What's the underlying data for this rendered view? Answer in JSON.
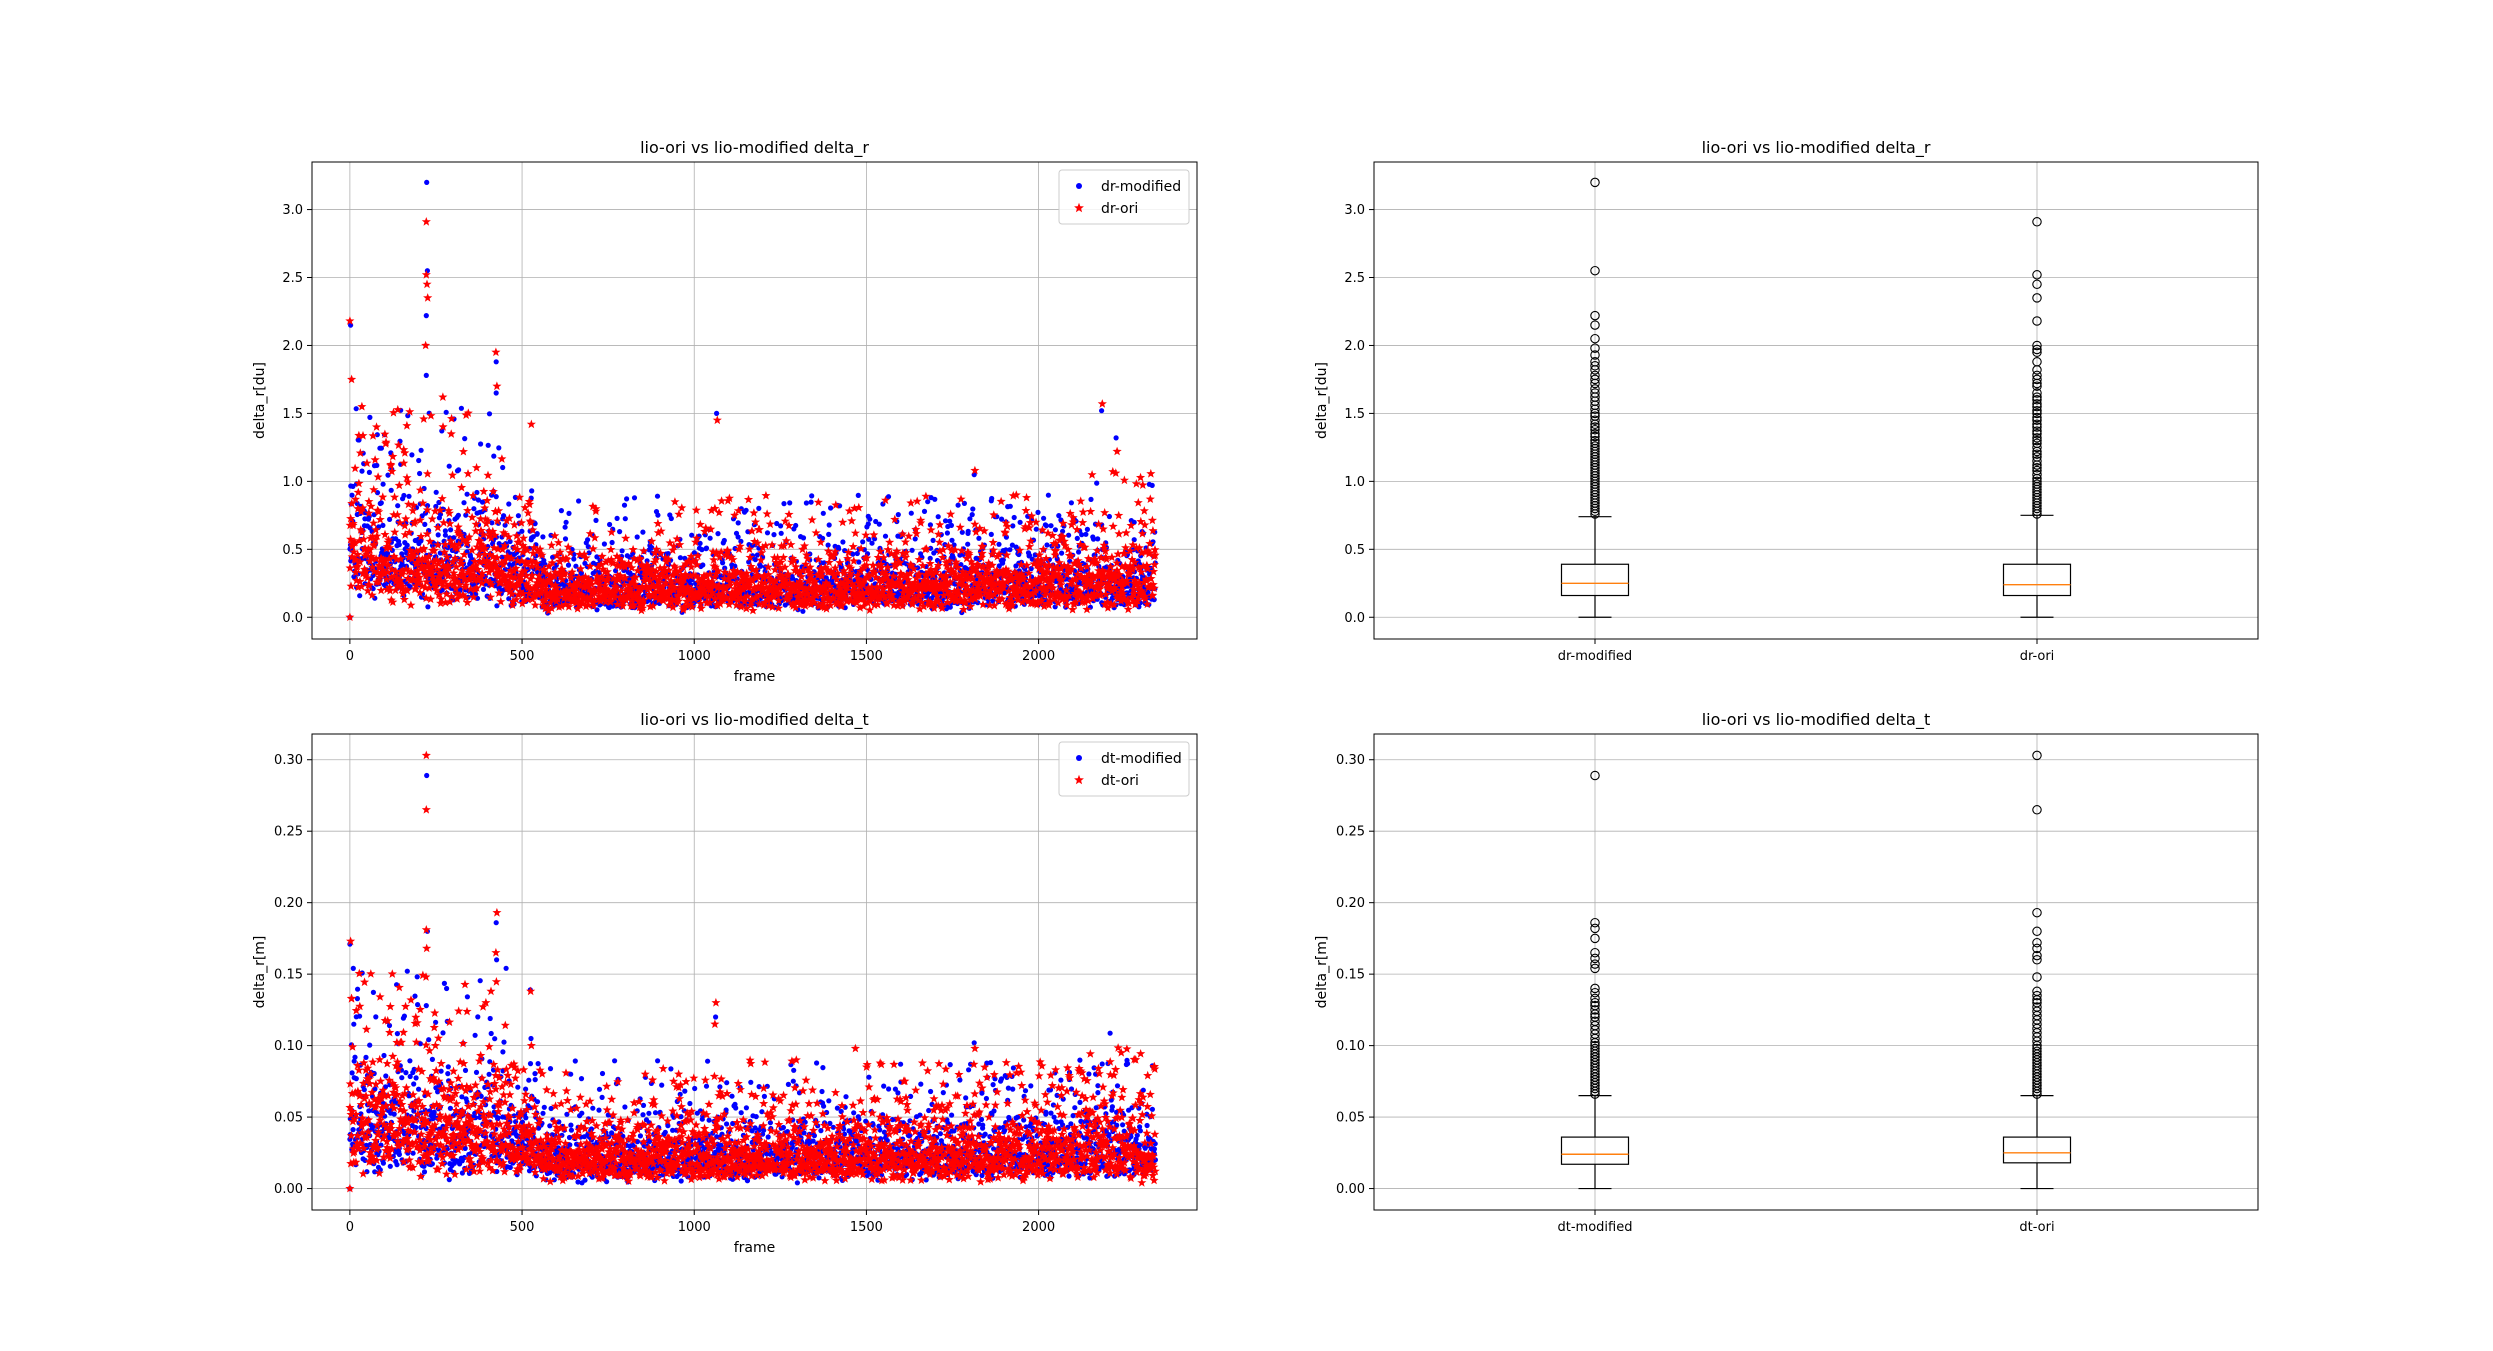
{
  "chart_data": [
    {
      "id": "scatter-delta-r",
      "type": "scatter",
      "title": "lio-ori vs lio-modified delta_r",
      "xlabel": "frame",
      "ylabel": "delta_r[du]",
      "xlim": [
        -110,
        2460
      ],
      "ylim": [
        -0.16,
        3.35
      ],
      "xticks": [
        0,
        500,
        1000,
        1500,
        2000
      ],
      "yticks": [
        0.0,
        0.5,
        1.0,
        1.5,
        2.0,
        2.5,
        3.0
      ],
      "yticklabels": [
        "0.0",
        "0.5",
        "1.0",
        "1.5",
        "2.0",
        "2.5",
        "3.0"
      ],
      "grid": true,
      "legend_position": "upper right",
      "n_frames": 2340,
      "series": [
        {
          "name": "dr-modified",
          "marker": "point",
          "color": "#0000ff"
        },
        {
          "name": "dr-ori",
          "marker": "star",
          "color": "#ff0000"
        }
      ],
      "median": 0.25,
      "q1": 0.16,
      "q3": 0.39,
      "max_outlier": 3.2,
      "outliers": [
        {
          "x": 223,
          "y": 3.2,
          "series": 0
        },
        {
          "x": 222,
          "y": 2.91,
          "series": 1
        },
        {
          "x": 225,
          "y": 2.55,
          "series": 0
        },
        {
          "x": 222,
          "y": 2.52,
          "series": 1
        },
        {
          "x": 224,
          "y": 2.45,
          "series": 1
        },
        {
          "x": 226,
          "y": 2.35,
          "series": 1
        },
        {
          "x": 222,
          "y": 2.22,
          "series": 0
        },
        {
          "x": 0,
          "y": 2.18,
          "series": 1
        },
        {
          "x": 2,
          "y": 2.15,
          "series": 0
        },
        {
          "x": 220,
          "y": 2.0,
          "series": 1
        },
        {
          "x": 424,
          "y": 1.95,
          "series": 1
        },
        {
          "x": 425,
          "y": 1.88,
          "series": 0
        },
        {
          "x": 222,
          "y": 1.78,
          "series": 0
        },
        {
          "x": 5,
          "y": 1.75,
          "series": 1
        },
        {
          "x": 427,
          "y": 1.7,
          "series": 1
        },
        {
          "x": 425,
          "y": 1.65,
          "series": 0
        },
        {
          "x": 270,
          "y": 1.62,
          "series": 1
        },
        {
          "x": 2185,
          "y": 1.57,
          "series": 1
        },
        {
          "x": 2183,
          "y": 1.52,
          "series": 0
        },
        {
          "x": 1065,
          "y": 1.5,
          "series": 0
        },
        {
          "x": 1067,
          "y": 1.45,
          "series": 1
        },
        {
          "x": 527,
          "y": 1.42,
          "series": 1
        },
        {
          "x": 2225,
          "y": 1.32,
          "series": 0
        },
        {
          "x": 2228,
          "y": 1.22,
          "series": 1
        },
        {
          "x": 1815,
          "y": 1.08,
          "series": 1
        },
        {
          "x": 1813,
          "y": 1.05,
          "series": 0
        },
        {
          "x": 2330,
          "y": 0.97,
          "series": 0
        },
        {
          "x": 528,
          "y": 0.93,
          "series": 0
        },
        {
          "x": 1965,
          "y": 0.88,
          "series": 1
        },
        {
          "x": 1678,
          "y": 0.85,
          "series": 0
        },
        {
          "x": 1060,
          "y": 0.8,
          "series": 1
        },
        {
          "x": 1422,
          "y": 0.82,
          "series": 0
        }
      ]
    },
    {
      "id": "box-delta-r",
      "type": "box",
      "title": "lio-ori vs lio-modified delta_r",
      "ylabel": "delta_r[du]",
      "ylim": [
        -0.16,
        3.35
      ],
      "yticks": [
        0.0,
        0.5,
        1.0,
        1.5,
        2.0,
        2.5,
        3.0
      ],
      "yticklabels": [
        "0.0",
        "0.5",
        "1.0",
        "1.5",
        "2.0",
        "2.5",
        "3.0"
      ],
      "grid": true,
      "categories": [
        "dr-modified",
        "dr-ori"
      ],
      "boxes": [
        {
          "min": 0.0,
          "q1": 0.16,
          "median": 0.25,
          "q3": 0.39,
          "max": 0.74,
          "outliers": [
            3.2,
            2.55,
            2.22,
            2.15,
            2.05,
            1.98,
            1.93,
            1.88,
            1.85,
            1.82,
            1.78,
            1.75,
            1.72,
            1.68,
            1.65,
            1.62,
            1.59,
            1.56,
            1.53,
            1.5,
            1.48,
            1.45,
            1.42,
            1.4,
            1.38,
            1.35,
            1.33,
            1.3,
            1.28,
            1.26,
            1.24,
            1.22,
            1.2,
            1.18,
            1.16,
            1.14,
            1.12,
            1.1,
            1.08,
            1.06,
            1.04,
            1.02,
            1.0,
            0.98,
            0.96,
            0.94,
            0.92,
            0.9,
            0.88,
            0.86,
            0.84,
            0.82,
            0.8,
            0.78,
            0.76
          ]
        },
        {
          "min": 0.0,
          "q1": 0.16,
          "median": 0.24,
          "q3": 0.39,
          "max": 0.75,
          "outliers": [
            2.91,
            2.52,
            2.45,
            2.35,
            2.18,
            2.0,
            1.97,
            1.95,
            1.88,
            1.82,
            1.78,
            1.75,
            1.72,
            1.7,
            1.65,
            1.62,
            1.6,
            1.57,
            1.55,
            1.52,
            1.5,
            1.47,
            1.45,
            1.42,
            1.4,
            1.37,
            1.35,
            1.32,
            1.3,
            1.28,
            1.25,
            1.22,
            1.2,
            1.18,
            1.15,
            1.12,
            1.1,
            1.08,
            1.05,
            1.02,
            1.0,
            0.98,
            0.96,
            0.94,
            0.92,
            0.9,
            0.88,
            0.86,
            0.84,
            0.82,
            0.8,
            0.78,
            0.76
          ]
        }
      ]
    },
    {
      "id": "scatter-delta-t",
      "type": "scatter",
      "title": "lio-ori vs lio-modified delta_t",
      "xlabel": "frame",
      "ylabel": "delta_r[m]",
      "xlim": [
        -110,
        2460
      ],
      "ylim": [
        -0.015,
        0.318
      ],
      "xticks": [
        0,
        500,
        1000,
        1500,
        2000
      ],
      "yticks": [
        0.0,
        0.05,
        0.1,
        0.15,
        0.2,
        0.25,
        0.3
      ],
      "yticklabels": [
        "0.00",
        "0.05",
        "0.10",
        "0.15",
        "0.20",
        "0.25",
        "0.30"
      ],
      "grid": true,
      "legend_position": "upper right",
      "n_frames": 2340,
      "series": [
        {
          "name": "dt-modified",
          "marker": "point",
          "color": "#0000ff"
        },
        {
          "name": "dt-ori",
          "marker": "star",
          "color": "#ff0000"
        }
      ],
      "median": 0.025,
      "q1": 0.017,
      "q3": 0.036,
      "max_outlier": 0.303,
      "outliers": [
        {
          "x": 222,
          "y": 0.303,
          "series": 1
        },
        {
          "x": 223,
          "y": 0.289,
          "series": 0
        },
        {
          "x": 222,
          "y": 0.265,
          "series": 1
        },
        {
          "x": 427,
          "y": 0.193,
          "series": 1
        },
        {
          "x": 425,
          "y": 0.186,
          "series": 0
        },
        {
          "x": 222,
          "y": 0.181,
          "series": 1
        },
        {
          "x": 225,
          "y": 0.18,
          "series": 0
        },
        {
          "x": 2,
          "y": 0.173,
          "series": 1
        },
        {
          "x": 0,
          "y": 0.171,
          "series": 0
        },
        {
          "x": 223,
          "y": 0.168,
          "series": 1
        },
        {
          "x": 424,
          "y": 0.165,
          "series": 1
        },
        {
          "x": 426,
          "y": 0.16,
          "series": 0
        },
        {
          "x": 221,
          "y": 0.148,
          "series": 1
        },
        {
          "x": 10,
          "y": 0.154,
          "series": 0
        },
        {
          "x": 525,
          "y": 0.138,
          "series": 1
        },
        {
          "x": 524,
          "y": 0.139,
          "series": 0
        },
        {
          "x": 5,
          "y": 0.133,
          "series": 1
        },
        {
          "x": 1063,
          "y": 0.13,
          "series": 1
        },
        {
          "x": 1062,
          "y": 0.12,
          "series": 0
        },
        {
          "x": 222,
          "y": 0.128,
          "series": 0
        },
        {
          "x": 395,
          "y": 0.13,
          "series": 1
        },
        {
          "x": 1060,
          "y": 0.115,
          "series": 1
        },
        {
          "x": 526,
          "y": 0.105,
          "series": 0
        },
        {
          "x": 527,
          "y": 0.1,
          "series": 1
        },
        {
          "x": 1468,
          "y": 0.098,
          "series": 1
        },
        {
          "x": 1813,
          "y": 0.102,
          "series": 0
        },
        {
          "x": 1815,
          "y": 0.098,
          "series": 1
        },
        {
          "x": 2240,
          "y": 0.095,
          "series": 1
        },
        {
          "x": 2335,
          "y": 0.085,
          "series": 1
        },
        {
          "x": 940,
          "y": 0.075,
          "series": 1
        }
      ]
    },
    {
      "id": "box-delta-t",
      "type": "box",
      "title": "lio-ori vs lio-modified delta_t",
      "ylabel": "delta_r[m]",
      "ylim": [
        -0.015,
        0.318
      ],
      "yticks": [
        0.0,
        0.05,
        0.1,
        0.15,
        0.2,
        0.25,
        0.3
      ],
      "yticklabels": [
        "0.00",
        "0.05",
        "0.10",
        "0.15",
        "0.20",
        "0.25",
        "0.30"
      ],
      "grid": true,
      "categories": [
        "dt-modified",
        "dt-ori"
      ],
      "boxes": [
        {
          "min": 0.0,
          "q1": 0.017,
          "median": 0.024,
          "q3": 0.036,
          "max": 0.065,
          "outliers": [
            0.289,
            0.186,
            0.182,
            0.175,
            0.165,
            0.161,
            0.157,
            0.154,
            0.14,
            0.137,
            0.133,
            0.13,
            0.128,
            0.125,
            0.122,
            0.12,
            0.117,
            0.114,
            0.111,
            0.108,
            0.105,
            0.102,
            0.1,
            0.098,
            0.096,
            0.094,
            0.092,
            0.09,
            0.088,
            0.086,
            0.084,
            0.082,
            0.08,
            0.078,
            0.076,
            0.074,
            0.072,
            0.07,
            0.068,
            0.066
          ]
        },
        {
          "min": 0.0,
          "q1": 0.018,
          "median": 0.025,
          "q3": 0.036,
          "max": 0.065,
          "outliers": [
            0.303,
            0.265,
            0.193,
            0.18,
            0.172,
            0.168,
            0.163,
            0.16,
            0.148,
            0.138,
            0.135,
            0.132,
            0.13,
            0.127,
            0.124,
            0.121,
            0.118,
            0.115,
            0.112,
            0.109,
            0.106,
            0.103,
            0.1,
            0.098,
            0.096,
            0.094,
            0.092,
            0.09,
            0.088,
            0.086,
            0.084,
            0.082,
            0.08,
            0.078,
            0.076,
            0.074,
            0.072,
            0.07,
            0.068,
            0.066
          ]
        }
      ]
    }
  ]
}
